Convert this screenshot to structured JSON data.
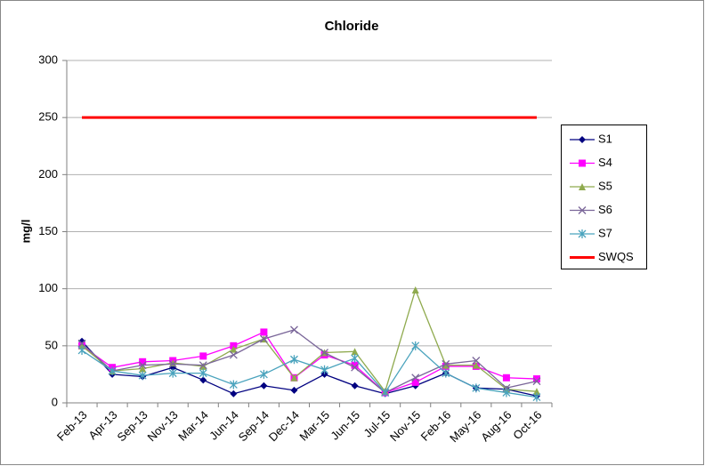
{
  "chart_data": {
    "type": "line",
    "title": "Chloride",
    "y_label": "mg/l",
    "categories": [
      "Feb-13",
      "Apr-13",
      "Sep-13",
      "Nov-13",
      "Mar-14",
      "Jun-14",
      "Sep-14",
      "Dec-14",
      "Mar-15",
      "Jun-15",
      "Jul-15",
      "Nov-15",
      "Feb-16",
      "May-16",
      "Aug-16",
      "Oct-16"
    ],
    "series": [
      {
        "name": "S1",
        "color": "#000080",
        "marker": "diamond",
        "values": [
          54,
          25,
          23,
          31,
          20,
          8,
          15,
          11,
          25,
          15,
          8,
          15,
          26,
          13,
          12,
          6
        ]
      },
      {
        "name": "S4",
        "color": "#ff00ff",
        "marker": "square",
        "values": [
          50,
          31,
          36,
          37,
          41,
          50,
          62,
          22,
          42,
          33,
          9,
          18,
          32,
          32,
          22,
          21
        ]
      },
      {
        "name": "S5",
        "color": "#8faa4e",
        "marker": "triangle",
        "values": [
          50,
          28,
          30,
          35,
          32,
          47,
          56,
          22,
          44,
          45,
          10,
          99,
          33,
          33,
          12,
          10
        ]
      },
      {
        "name": "S6",
        "color": "#7a6699",
        "marker": "x",
        "values": [
          52,
          28,
          33,
          34,
          33,
          42,
          56,
          64,
          44,
          31,
          9,
          22,
          34,
          37,
          13,
          19
        ]
      },
      {
        "name": "S7",
        "color": "#4aa3bd",
        "marker": "star",
        "values": [
          46,
          28,
          24,
          26,
          26,
          16,
          25,
          38,
          29,
          39,
          9,
          50,
          26,
          13,
          9,
          5
        ]
      },
      {
        "name": "SWQS",
        "color": "#ff0000",
        "marker": "none",
        "values": [
          250,
          250,
          250,
          250,
          250,
          250,
          250,
          250,
          250,
          250,
          250,
          250,
          250,
          250,
          250,
          250
        ]
      }
    ],
    "ylim": [
      0,
      300
    ],
    "yticks": [
      0,
      50,
      100,
      150,
      200,
      250,
      300
    ],
    "grid": true,
    "legend": "right"
  }
}
